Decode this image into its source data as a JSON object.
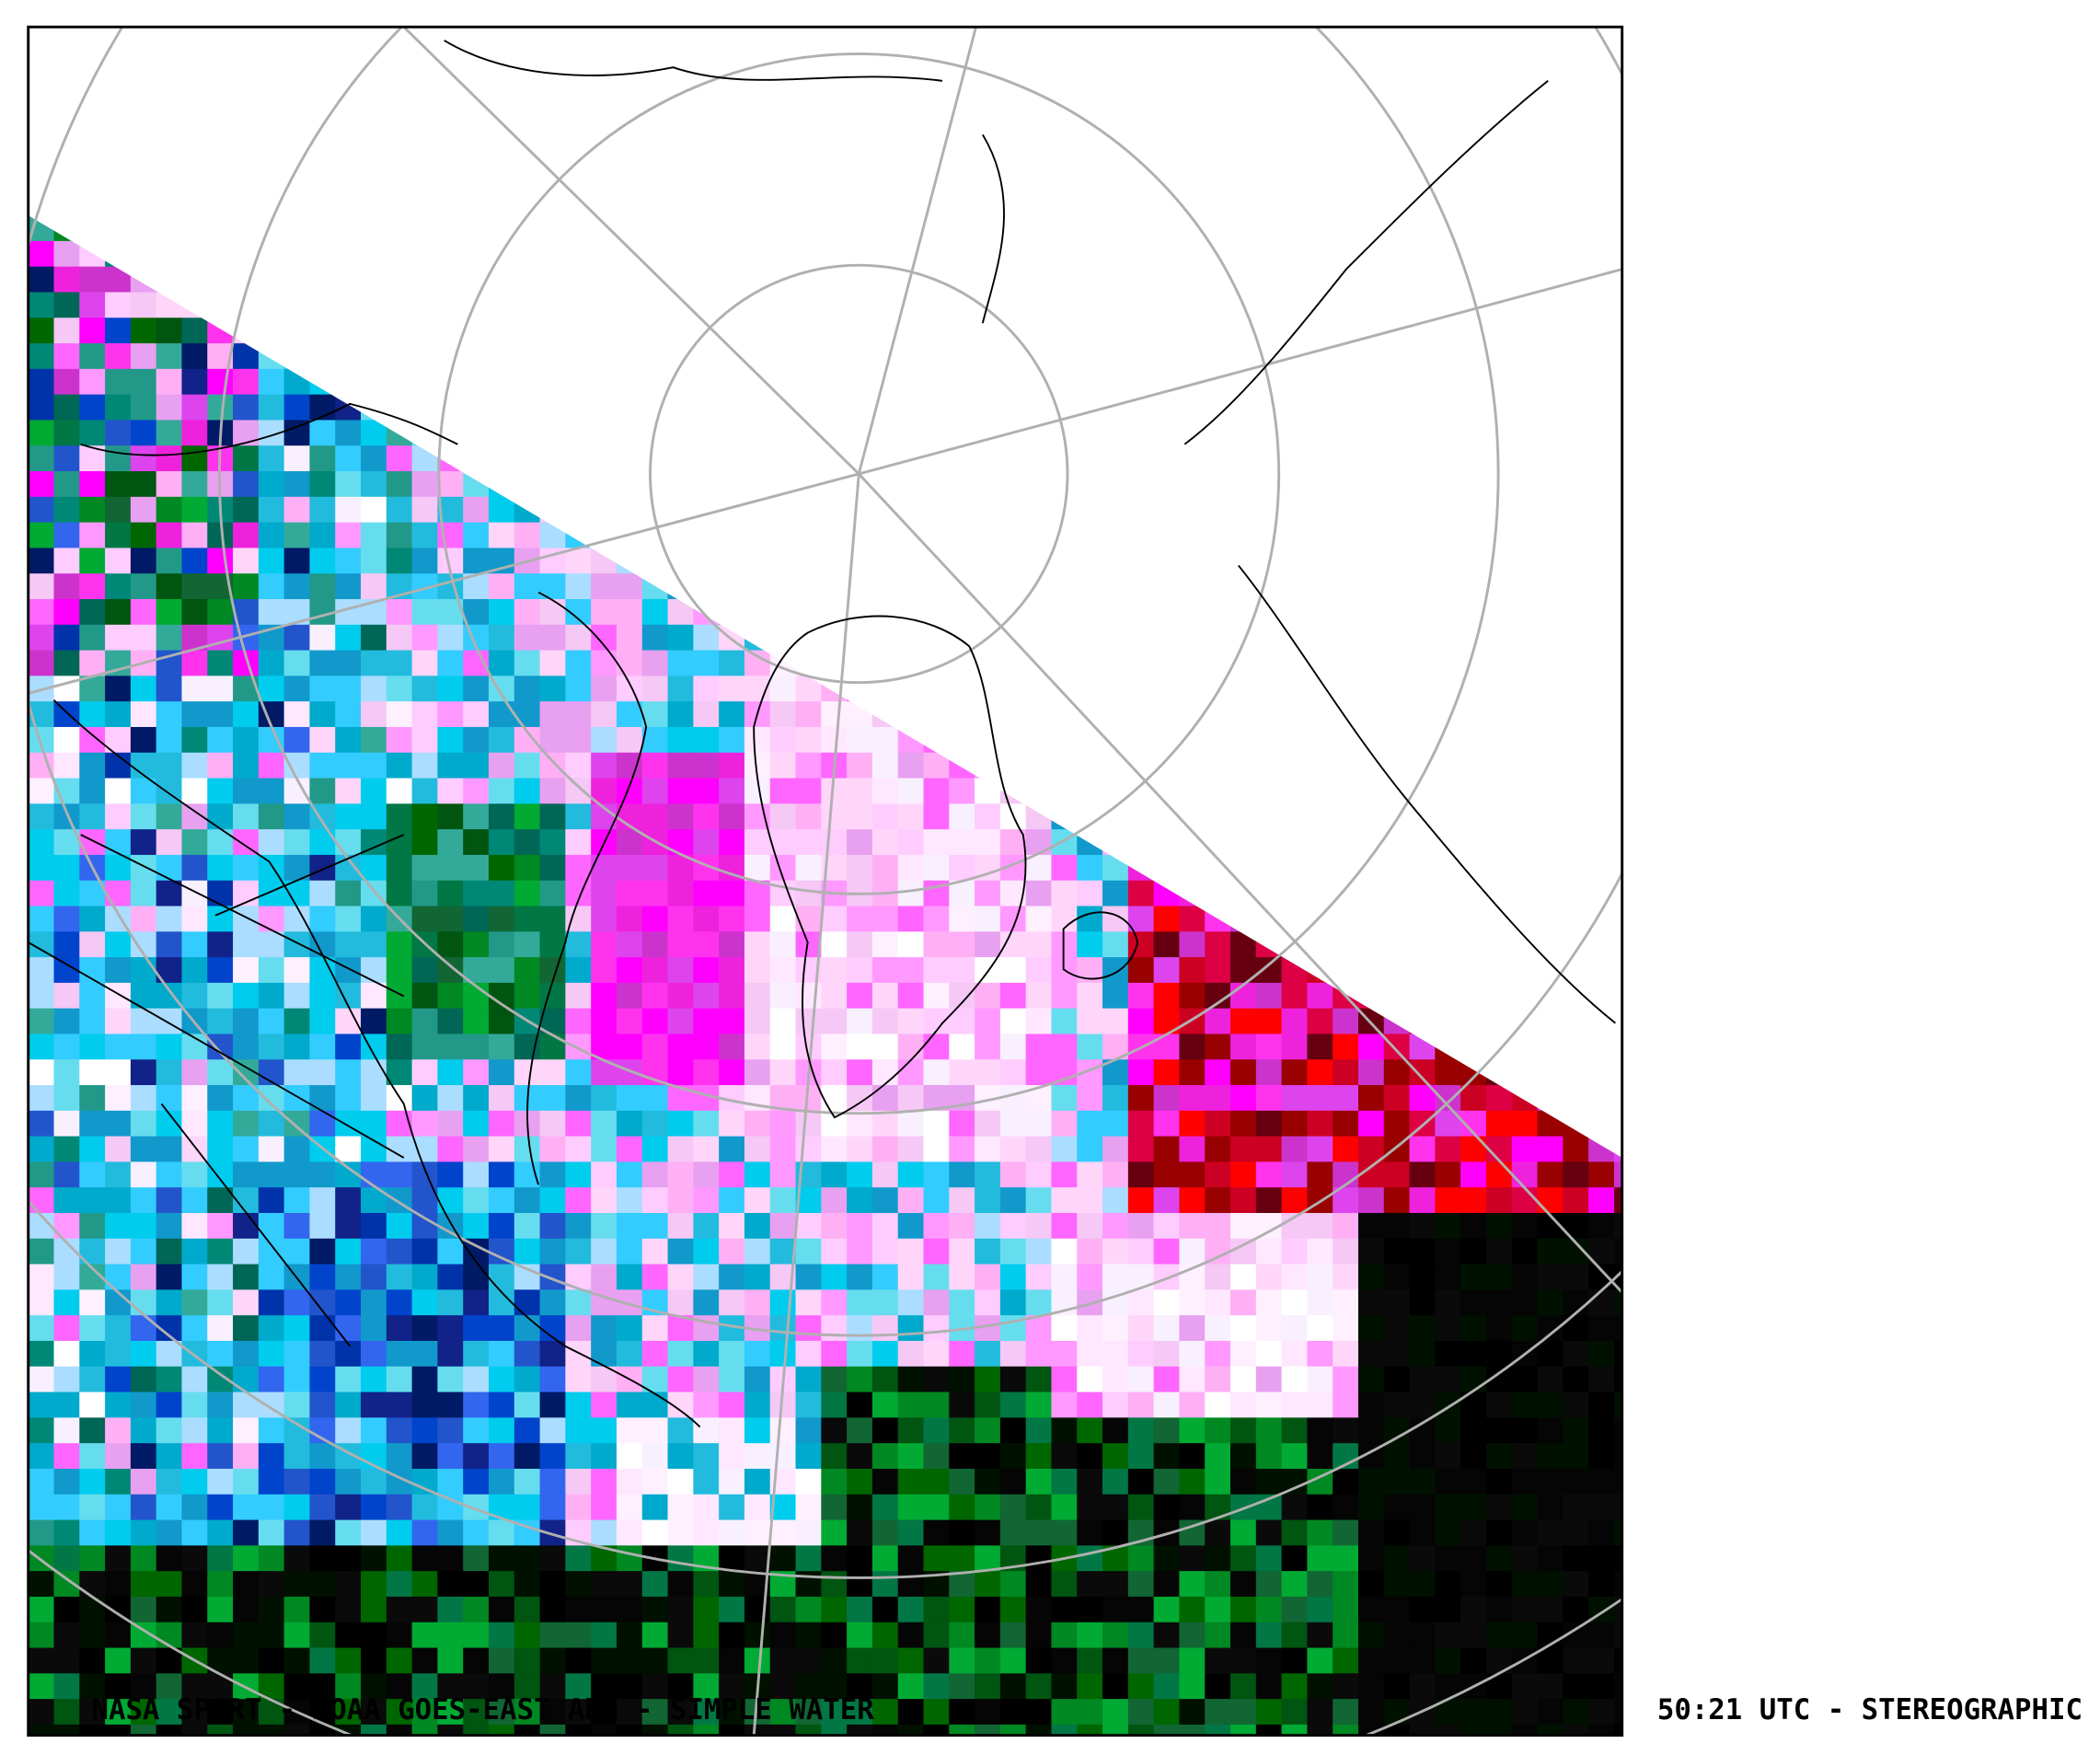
{
  "caption": {
    "left": "NASA SPORT  -  NOAA GOES-EAST ABI  -  SIMPLE WATER",
    "right": "50:21 UTC - STEREOGRAPHIC"
  }
}
